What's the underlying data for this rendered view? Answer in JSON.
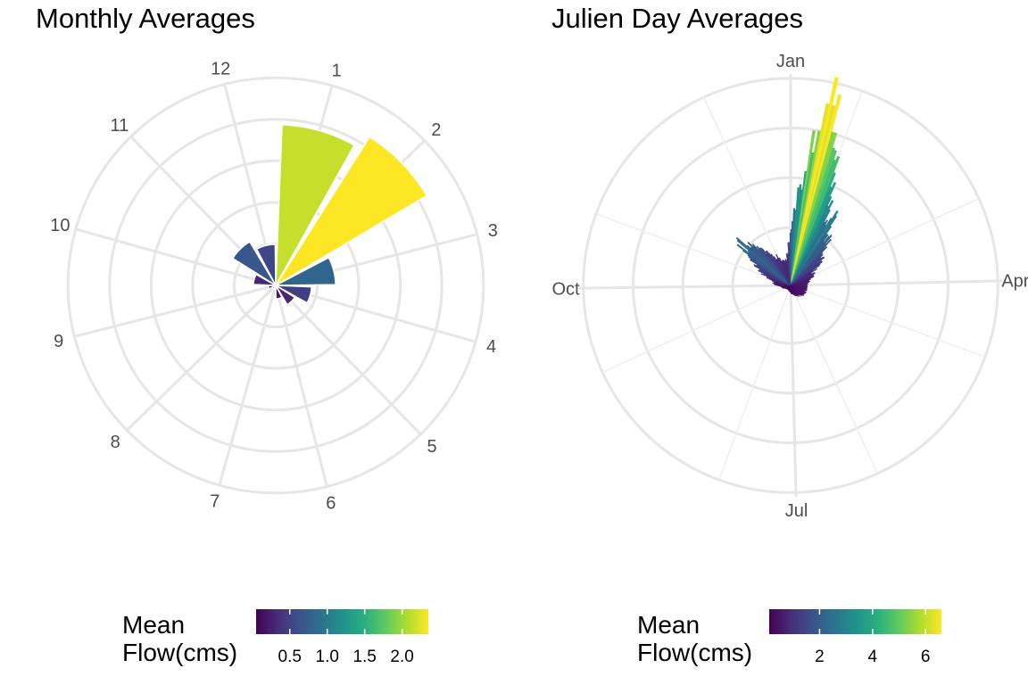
{
  "chart_data": [
    {
      "type": "bar",
      "coord": "polar",
      "title": "Monthly Averages",
      "categories": [
        "1",
        "2",
        "3",
        "4",
        "5",
        "6",
        "7",
        "8",
        "9",
        "10",
        "11",
        "12"
      ],
      "values": [
        2.15,
        2.35,
        0.8,
        0.48,
        0.3,
        0.18,
        0.05,
        0.06,
        0.1,
        0.3,
        0.68,
        0.55
      ],
      "ylim": [
        0,
        2.35
      ],
      "grid": true,
      "legend": {
        "title": "Mean\nFlow(cms)",
        "position": "bottom",
        "palette": "viridis",
        "range": [
          0.05,
          2.35
        ],
        "ticks": [
          "0.5",
          "1.0",
          "1.5",
          "2.0"
        ],
        "tick_values": [
          0.5,
          1.0,
          1.5,
          2.0
        ]
      }
    },
    {
      "type": "bar",
      "coord": "polar",
      "title": "Julien Day Averages",
      "x_range": [
        1,
        365
      ],
      "axis_labels": [
        "Jan",
        "Apr",
        "Jul",
        "Oct"
      ],
      "axis_days": [
        1,
        91,
        182,
        274
      ],
      "profile_days": [
        1,
        5,
        10,
        15,
        18,
        20,
        24,
        28,
        32,
        36,
        40,
        45,
        50,
        55,
        60,
        70,
        80,
        95,
        110,
        130,
        150,
        170,
        190,
        210,
        230,
        250,
        270,
        280,
        290,
        300,
        305,
        310,
        315,
        320,
        325,
        330,
        335,
        340,
        345,
        350,
        355,
        360,
        365
      ],
      "profile_values": [
        1.3,
        2.2,
        3.8,
        6.4,
        6.4,
        5.0,
        4.2,
        3.0,
        2.6,
        2.6,
        2.2,
        1.9,
        1.6,
        1.4,
        1.0,
        0.8,
        0.6,
        0.5,
        0.5,
        0.5,
        0.4,
        0.3,
        0.2,
        0.15,
        0.15,
        0.2,
        0.3,
        0.5,
        0.6,
        1.0,
        1.2,
        1.6,
        2.0,
        2.2,
        1.8,
        1.4,
        1.2,
        1.1,
        1.0,
        0.9,
        0.8,
        0.9,
        1.3
      ],
      "ylim": [
        0,
        6.6
      ],
      "grid": true,
      "legend": {
        "title": "Mean\nFlow(cms)",
        "position": "bottom",
        "palette": "viridis",
        "range": [
          0.1,
          6.6
        ],
        "ticks": [
          "2",
          "4",
          "6"
        ],
        "tick_values": [
          2,
          4,
          6
        ]
      }
    }
  ]
}
